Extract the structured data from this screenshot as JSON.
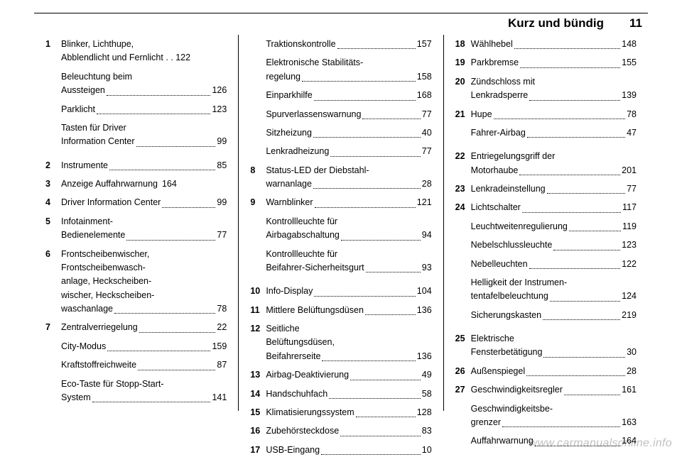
{
  "header": {
    "section_title": "Kurz und bündig",
    "page_num": "11"
  },
  "watermark": "www.carmanualsonline.info",
  "col1": [
    {
      "type": "group",
      "items": [
        {
          "num": "1",
          "lines": [
            "Blinker, Lichthupe,",
            "Abblendlicht und Fernlicht"
          ],
          "pg": "122",
          "tight": true
        },
        {
          "cont": true,
          "lines": [
            "Beleuchtung beim",
            "Aussteigen"
          ],
          "pg": "126"
        },
        {
          "cont": true,
          "lines": [
            "Parklicht"
          ],
          "pg": "123"
        },
        {
          "cont": true,
          "lines": [
            "Tasten für Driver",
            "Information Center"
          ],
          "pg": "99"
        }
      ]
    },
    {
      "num": "2",
      "lines": [
        "Instrumente"
      ],
      "pg": "85"
    },
    {
      "num": "3",
      "lines": [
        "Anzeige Auffahrwarnung"
      ],
      "pg": "164",
      "tight": true
    },
    {
      "num": "4",
      "lines": [
        "Driver Information Center"
      ],
      "pg": "99"
    },
    {
      "num": "5",
      "lines": [
        "Infotainment-",
        "Bedienelemente"
      ],
      "pg": "77"
    },
    {
      "num": "6",
      "lines": [
        "Frontscheibenwischer,",
        "Frontscheibenwasch-",
        "anlage, Heckscheiben-",
        "wischer, Heckscheiben-",
        "waschanlage"
      ],
      "pg": "78"
    },
    {
      "type": "group",
      "items": [
        {
          "num": "7",
          "lines": [
            "Zentralverriegelung"
          ],
          "pg": "22"
        },
        {
          "cont": true,
          "lines": [
            "City-Modus"
          ],
          "pg": "159"
        },
        {
          "cont": true,
          "lines": [
            "Kraftstoffreichweite"
          ],
          "pg": "87"
        },
        {
          "cont": true,
          "lines": [
            "Eco-Taste für Stopp-Start-",
            "System"
          ],
          "pg": "141"
        }
      ]
    }
  ],
  "col2": [
    {
      "cont": true,
      "lines": [
        "Traktionskontrolle"
      ],
      "pg": "157"
    },
    {
      "cont": true,
      "lines": [
        "Elektronische Stabilitäts-",
        "regelung"
      ],
      "pg": "158"
    },
    {
      "cont": true,
      "lines": [
        "Einparkhilfe"
      ],
      "pg": "168"
    },
    {
      "cont": true,
      "lines": [
        "Spurverlassenswarnung"
      ],
      "pg": "77"
    },
    {
      "cont": true,
      "lines": [
        "Sitzheizung"
      ],
      "pg": "40"
    },
    {
      "cont": true,
      "lines": [
        "Lenkradheizung"
      ],
      "pg": "77"
    },
    {
      "num": "8",
      "lines": [
        "Status-LED der Diebstahl-",
        "warnanlage"
      ],
      "pg": "28"
    },
    {
      "type": "group",
      "items": [
        {
          "num": "9",
          "lines": [
            "Warnblinker"
          ],
          "pg": "121"
        },
        {
          "cont": true,
          "lines": [
            "Kontrollleuchte für",
            "Airbagabschaltung"
          ],
          "pg": "94"
        },
        {
          "cont": true,
          "lines": [
            "Kontrollleuchte für",
            "Beifahrer-Sicherheitsgurt"
          ],
          "pg": "93"
        }
      ]
    },
    {
      "num": "10",
      "lines": [
        "Info-Display"
      ],
      "pg": "104"
    },
    {
      "num": "11",
      "lines": [
        "Mittlere Belüftungsdüsen"
      ],
      "pg": "136"
    },
    {
      "num": "12",
      "lines": [
        "Seitliche",
        "Belüftungsdüsen,",
        "Beifahrerseite"
      ],
      "pg": "136"
    },
    {
      "num": "13",
      "lines": [
        "Airbag-Deaktivierung"
      ],
      "pg": "49"
    },
    {
      "num": "14",
      "lines": [
        "Handschuhfach"
      ],
      "pg": "58"
    },
    {
      "num": "15",
      "lines": [
        "Klimatisierungssystem"
      ],
      "pg": "128"
    },
    {
      "num": "16",
      "lines": [
        "Zubehörsteckdose"
      ],
      "pg": "83"
    },
    {
      "num": "17",
      "lines": [
        "USB-Eingang"
      ],
      "pg": "10"
    }
  ],
  "col3": [
    {
      "num": "18",
      "lines": [
        "Wählhebel"
      ],
      "pg": "148"
    },
    {
      "num": "19",
      "lines": [
        "Parkbremse"
      ],
      "pg": "155"
    },
    {
      "num": "20",
      "lines": [
        "Zündschloss mit",
        "Lenkradsperre"
      ],
      "pg": "139"
    },
    {
      "type": "group",
      "items": [
        {
          "num": "21",
          "lines": [
            "Hupe"
          ],
          "pg": "78"
        },
        {
          "cont": true,
          "lines": [
            "Fahrer-Airbag"
          ],
          "pg": "47"
        }
      ]
    },
    {
      "num": "22",
      "lines": [
        "Entriegelungsgriff der",
        "Motorhaube"
      ],
      "pg": "201"
    },
    {
      "num": "23",
      "lines": [
        "Lenkradeinstellung"
      ],
      "pg": "77"
    },
    {
      "type": "group",
      "items": [
        {
          "num": "24",
          "lines": [
            "Lichtschalter"
          ],
          "pg": "117"
        },
        {
          "cont": true,
          "lines": [
            "Leuchtweitenregulierung"
          ],
          "pg": "119"
        },
        {
          "cont": true,
          "lines": [
            "Nebelschlussleuchte"
          ],
          "pg": "123"
        },
        {
          "cont": true,
          "lines": [
            "Nebelleuchten"
          ],
          "pg": "122"
        },
        {
          "cont": true,
          "lines": [
            "Helligkeit der Instrumen-",
            "tentafelbeleuchtung"
          ],
          "pg": "124"
        },
        {
          "cont": true,
          "lines": [
            "Sicherungskasten"
          ],
          "pg": "219"
        }
      ]
    },
    {
      "num": "25",
      "lines": [
        "Elektrische",
        "Fensterbetätigung"
      ],
      "pg": "30"
    },
    {
      "num": "26",
      "lines": [
        "Außenspiegel"
      ],
      "pg": "28"
    },
    {
      "type": "group",
      "items": [
        {
          "num": "27",
          "lines": [
            "Geschwindigkeitsregler"
          ],
          "pg": "161"
        },
        {
          "cont": true,
          "lines": [
            "Geschwindigkeitsbe-",
            "grenzer"
          ],
          "pg": "163"
        },
        {
          "cont": true,
          "lines": [
            "Auffahrwarnung"
          ],
          "pg": "164"
        }
      ]
    }
  ]
}
